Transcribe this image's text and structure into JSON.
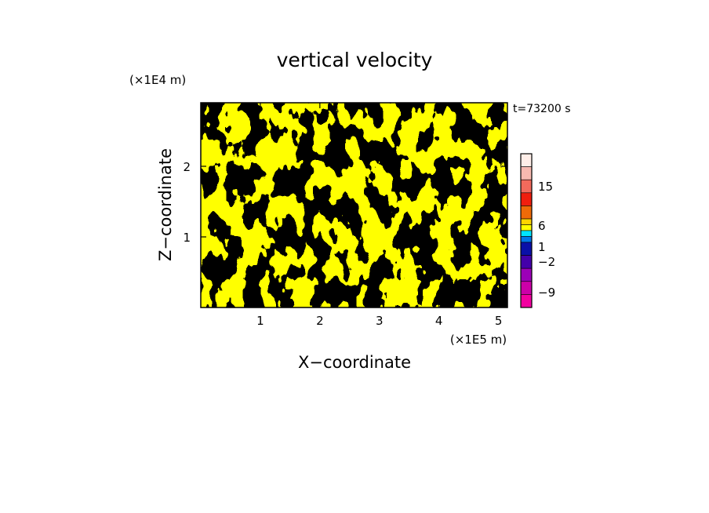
{
  "chart_data": {
    "type": "heatmap",
    "title": "vertical velocity",
    "xlabel": "X−coordinate",
    "ylabel": "Z−coordinate",
    "x_unit": "(×1E5 m)",
    "y_unit": "(×1E4 m)",
    "time_label": "t=73200 s",
    "xlim": [
      0,
      5.15
    ],
    "ylim": [
      0,
      2.9
    ],
    "x_ticks": [
      "1",
      "2",
      "3",
      "4",
      "5"
    ],
    "y_ticks": [
      "1",
      "2"
    ],
    "field_colors": {
      "positive": "#ffff00",
      "negative": "#00e6ff"
    },
    "colorbar": {
      "tick_labels": [
        "15",
        "6",
        "1",
        "−2",
        "−9"
      ],
      "levels_top_to_bottom": [
        {
          "color": "#ffeee8"
        },
        {
          "color": "#f7b9b0"
        },
        {
          "color": "#f26a5c"
        },
        {
          "color": "#f01e0e"
        },
        {
          "color": "#ee6a08"
        },
        {
          "color": "#ffd400"
        },
        {
          "color": "#ffff00"
        },
        {
          "color": "#00e6ff"
        },
        {
          "color": "#0078e8"
        },
        {
          "color": "#0a10a8"
        },
        {
          "color": "#4400aa"
        },
        {
          "color": "#9c00b8"
        },
        {
          "color": "#cc00a8"
        },
        {
          "color": "#f200a0"
        }
      ]
    }
  }
}
